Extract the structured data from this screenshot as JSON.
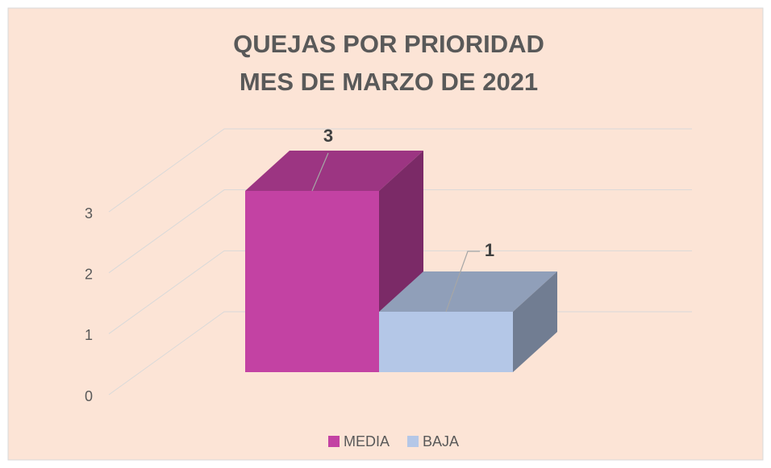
{
  "chart_data": {
    "type": "bar3d",
    "title": "QUEJAS POR PRIORIDAD",
    "subtitle": "MES DE MARZO DE 2021",
    "series": [
      {
        "name": "MEDIA",
        "color": "#c342a3",
        "values": [
          3
        ]
      },
      {
        "name": "BAJA",
        "color": "#b4c7e7",
        "values": [
          1
        ]
      }
    ],
    "ylim": [
      0,
      3
    ],
    "yticks": [
      0,
      1,
      2,
      3
    ],
    "grid": true,
    "legend": "bottom"
  }
}
